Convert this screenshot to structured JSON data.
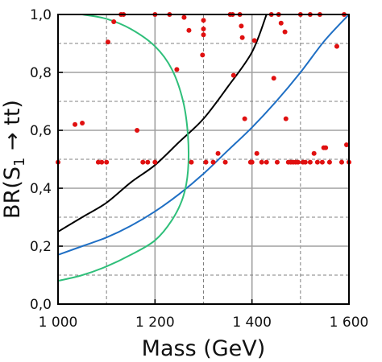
{
  "chart_data": {
    "type": "scatter",
    "xlabel": "Mass (GeV)",
    "ylabel": "BR(S1 → tt)",
    "ylabel_parts": {
      "pre": "BR(S",
      "sub": "1",
      "post": " → tt)"
    },
    "xlim": [
      1000,
      1600
    ],
    "ylim": [
      0,
      1
    ],
    "x_ticks": [
      1000,
      1200,
      1400,
      1600
    ],
    "x_tick_labels": [
      "1 000",
      "1 200",
      "1 400",
      "1 600"
    ],
    "y_ticks": [
      0,
      0.2,
      0.4,
      0.6,
      0.8,
      1.0
    ],
    "y_tick_labels": [
      "0,0",
      "0,2",
      "0,4",
      "0,6",
      "0,8",
      "1,0"
    ],
    "grid": true,
    "grid_style": "solid major, dashed minor",
    "colors": {
      "black_curve": "#000000",
      "blue_curve": "#1f6fc4",
      "green_curve": "#2fbf7a",
      "points": "#e01010",
      "grid_major": "#a0a0a0",
      "grid_minor": "#808080"
    },
    "series": [
      {
        "style": "black-line",
        "x": [
          1000,
          1050,
          1100,
          1150,
          1200,
          1250,
          1300,
          1350,
          1400,
          1430
        ],
        "y": [
          0.25,
          0.3,
          0.35,
          0.42,
          0.48,
          0.56,
          0.64,
          0.75,
          0.87,
          1.0
        ]
      },
      {
        "style": "blue-line",
        "x": [
          1000,
          1050,
          1100,
          1150,
          1200,
          1250,
          1300,
          1350,
          1400,
          1450,
          1500,
          1550,
          1600
        ],
        "y": [
          0.17,
          0.2,
          0.23,
          0.27,
          0.32,
          0.38,
          0.45,
          0.53,
          0.61,
          0.7,
          0.8,
          0.91,
          1.0
        ]
      },
      {
        "style": "green-line",
        "x": [
          1050,
          1100,
          1150,
          1200,
          1235,
          1258,
          1268,
          1268,
          1258,
          1235,
          1200,
          1150,
          1100,
          1050,
          1000
        ],
        "y": [
          1.0,
          0.985,
          0.95,
          0.89,
          0.81,
          0.7,
          0.58,
          0.46,
          0.37,
          0.29,
          0.22,
          0.17,
          0.13,
          0.1,
          0.08
        ]
      },
      {
        "style": "red-points",
        "x": [
          1000,
          1035,
          1050,
          1083,
          1090,
          1103,
          1100,
          1115,
          1130,
          1135,
          1163,
          1175,
          1185,
          1200,
          1200,
          1230,
          1245,
          1260,
          1270,
          1275,
          1300,
          1298,
          1300,
          1300,
          1305,
          1320,
          1330,
          1345,
          1355,
          1360,
          1362,
          1375,
          1378,
          1380,
          1385,
          1397,
          1400,
          1405,
          1410,
          1420,
          1430,
          1440,
          1445,
          1452,
          1455,
          1460,
          1468,
          1470,
          1475,
          1480,
          1485,
          1490,
          1495,
          1500,
          1505,
          1510,
          1520,
          1520,
          1528,
          1535,
          1540,
          1545,
          1548,
          1552,
          1560,
          1575,
          1585,
          1590,
          1595,
          1600
        ],
        "y": [
          0.49,
          0.62,
          0.625,
          0.49,
          0.49,
          0.905,
          0.49,
          0.975,
          1.0,
          1.0,
          0.6,
          0.49,
          0.49,
          0.49,
          1.0,
          1.0,
          0.81,
          0.99,
          0.945,
          0.49,
          0.98,
          0.86,
          0.95,
          0.93,
          0.49,
          0.49,
          0.52,
          0.49,
          1.0,
          1.0,
          0.79,
          1.0,
          0.96,
          0.92,
          0.64,
          0.49,
          0.49,
          0.91,
          0.52,
          0.49,
          0.49,
          1.0,
          0.78,
          0.49,
          1.0,
          0.97,
          0.94,
          0.64,
          0.49,
          0.49,
          0.49,
          0.49,
          0.49,
          1.0,
          0.49,
          0.49,
          1.0,
          0.49,
          0.52,
          0.49,
          1.0,
          0.49,
          0.54,
          0.54,
          0.49,
          0.89,
          0.49,
          1.0,
          0.55,
          0.49
        ]
      }
    ]
  }
}
